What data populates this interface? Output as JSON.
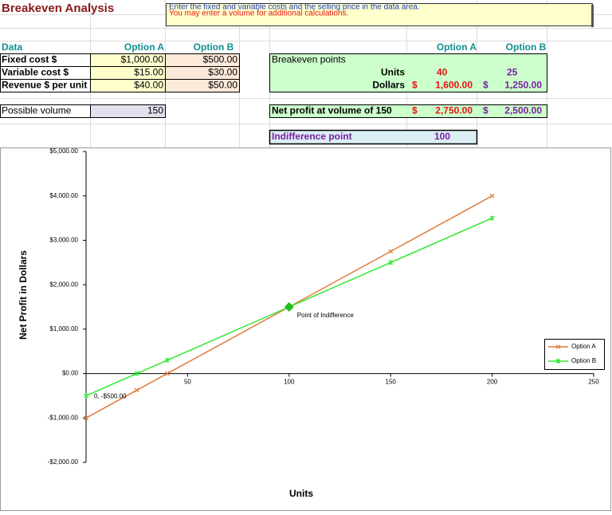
{
  "header": {
    "title": "Breakeven Analysis",
    "note_line1": "Enter the fixed and variable costs and the selling price in the data area.",
    "note_line2": "You may enter a volume for additional calculations."
  },
  "data_table": {
    "header": [
      "Data",
      "Option A",
      "Option B"
    ],
    "rows": [
      [
        "Fixed cost $",
        "$1,000.00",
        "$500.00"
      ],
      [
        "Variable cost $",
        "$15.00",
        "$30.00"
      ],
      [
        "Revenue $ per unit",
        "$40.00",
        "$50.00"
      ]
    ],
    "volume": [
      "Possible volume",
      "150"
    ]
  },
  "results": {
    "header": [
      "Option A",
      "Option B"
    ],
    "title": "Breakeven points",
    "units": [
      "Units",
      "40",
      "25"
    ],
    "dollars": [
      "Dollars",
      "$",
      "1,600.00",
      "$",
      "1,250.00"
    ],
    "net_profit": [
      "Net profit at volume of 150",
      "$",
      "2,750.00",
      "$",
      "2,500.00"
    ],
    "indifference": [
      "Indifference point",
      "100"
    ]
  },
  "chart_data": {
    "type": "line",
    "xlabel": "Units",
    "ylabel": "Net Profit in Dollars",
    "x": [
      0,
      25,
      40,
      100,
      150,
      200
    ],
    "series": [
      {
        "name": "Option A",
        "color": "#e07b39",
        "marker": "x",
        "values": [
          -1000,
          -375,
          0,
          1500,
          2750,
          4000
        ]
      },
      {
        "name": "Option B",
        "color": "#33e833",
        "marker": "star",
        "values": [
          -500,
          0,
          300,
          1500,
          2500,
          3500
        ]
      }
    ],
    "xlim": [
      0,
      250
    ],
    "xticks": [
      50,
      100,
      150,
      200,
      250
    ],
    "ylim": [
      -2000,
      5000
    ],
    "yticks": [
      {
        "value": 5000,
        "label": "$5,000.00"
      },
      {
        "value": 4000,
        "label": "$4,000.00"
      },
      {
        "value": 3000,
        "label": "$3,000.00"
      },
      {
        "value": 2000,
        "label": "$2,000.00"
      },
      {
        "value": 1000,
        "label": "$1,000.00"
      },
      {
        "value": 0,
        "label": "$0.00"
      },
      {
        "value": -1000,
        "label": "-$1,000.00"
      },
      {
        "value": -2000,
        "label": "-$2,000.00"
      }
    ],
    "legend": "right",
    "annotations": [
      {
        "label": "Point of Indifference",
        "x": 100,
        "y": 1500,
        "color": "#22bb22"
      },
      {
        "label": "0, -$500.00",
        "x": 0,
        "y": -500
      }
    ]
  }
}
